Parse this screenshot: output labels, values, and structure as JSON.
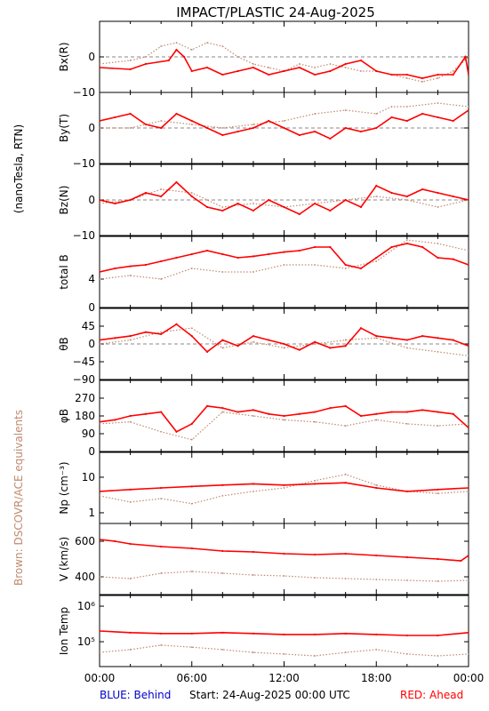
{
  "title": "IMPACT/PLASTIC   24-Aug-2025",
  "left_labels": {
    "units": "(nanoTesla, RTN)",
    "brown_note": "Brown: DSCOVR/ACE equivalents"
  },
  "footer": {
    "blue_label": "BLUE: Behind",
    "start_label": "Start: 24-Aug-2025 00:00 UTC",
    "red_label": "RED: Ahead"
  },
  "colors": {
    "ahead": "#ff0000",
    "dscovr": "#c08a70",
    "behind": "#0000cc",
    "axes": "#000000",
    "zero_line": "#888888"
  },
  "x_tick_labels": [
    "00:00",
    "06:00",
    "12:00",
    "18:00",
    "00:00"
  ],
  "chart_data": [
    {
      "type": "line",
      "id": "bx",
      "ylabel": "Bx(R)",
      "ylim": [
        -10,
        10
      ],
      "yticks": [
        0,
        -10
      ],
      "ytick_labels": [
        "0",
        "−10"
      ],
      "zero_line": true,
      "series": [
        {
          "role": "ahead",
          "x": [
            0,
            2,
            3,
            4.5,
            5,
            5.5,
            6,
            7,
            8,
            9,
            10,
            11,
            12,
            13,
            14,
            15,
            16,
            17,
            18,
            19,
            20,
            21,
            22,
            23,
            23.8,
            24
          ],
          "y": [
            -3,
            -3.5,
            -2,
            -1,
            2,
            0,
            -4,
            -3,
            -5,
            -4,
            -3,
            -5,
            -4,
            -3,
            -5,
            -4,
            -2,
            -1,
            -4,
            -5,
            -5,
            -6,
            -5,
            -5,
            0,
            -5
          ]
        },
        {
          "role": "dscovr",
          "x": [
            0,
            2,
            3,
            4,
            5,
            6,
            7,
            8,
            9,
            10,
            11,
            12,
            13,
            14,
            15,
            16,
            17,
            18,
            19,
            20,
            21,
            22,
            23,
            24
          ],
          "y": [
            -2,
            -1,
            0,
            3,
            4,
            2,
            4,
            3,
            0,
            -2,
            -3,
            -4,
            -2,
            -3,
            -2,
            -3,
            -4,
            -4,
            -5,
            -6,
            -7,
            -6,
            -4,
            0
          ]
        }
      ]
    },
    {
      "type": "line",
      "id": "by",
      "ylabel": "By(T)",
      "ylim": [
        -10,
        10
      ],
      "yticks": [
        0,
        -10
      ],
      "ytick_labels": [
        "0",
        "−10"
      ],
      "zero_line": true,
      "series": [
        {
          "role": "ahead",
          "x": [
            0,
            1,
            2,
            3,
            4,
            5,
            6,
            7,
            8,
            9,
            10,
            11,
            12,
            13,
            14,
            15,
            16,
            17,
            18,
            19,
            20,
            21,
            22,
            23,
            24
          ],
          "y": [
            2,
            3,
            4,
            1,
            0,
            4,
            2,
            0,
            -2,
            -1,
            0,
            2,
            0,
            -2,
            -1,
            -3,
            0,
            -1,
            0,
            3,
            2,
            4,
            3,
            2,
            5
          ]
        },
        {
          "role": "dscovr",
          "x": [
            0,
            2,
            4,
            6,
            8,
            10,
            12,
            14,
            16,
            18,
            19,
            20,
            22,
            24
          ],
          "y": [
            0,
            0,
            2,
            1,
            0,
            1,
            2,
            4,
            5,
            4,
            6,
            6,
            7,
            6
          ]
        }
      ]
    },
    {
      "type": "line",
      "id": "bz",
      "ylabel": "Bz(N)",
      "ylim": [
        -10,
        10
      ],
      "yticks": [
        0,
        -10
      ],
      "ytick_labels": [
        "0",
        "−10"
      ],
      "zero_line": true,
      "series": [
        {
          "role": "ahead",
          "x": [
            0,
            1,
            2,
            3,
            4,
            5,
            6,
            7,
            8,
            9,
            10,
            11,
            12,
            13,
            14,
            15,
            16,
            17,
            18,
            19,
            20,
            21,
            22,
            23,
            24
          ],
          "y": [
            0,
            -1,
            0,
            2,
            1,
            5,
            1,
            -2,
            -3,
            -1,
            -3,
            0,
            -2,
            -4,
            -1,
            -3,
            0,
            -2,
            4,
            2,
            1,
            3,
            2,
            1,
            0
          ]
        },
        {
          "role": "dscovr",
          "x": [
            0,
            2,
            4,
            6,
            8,
            10,
            12,
            14,
            16,
            18,
            20,
            22,
            24
          ],
          "y": [
            -1,
            0,
            3,
            2,
            -2,
            -1,
            -2,
            -1,
            0,
            1,
            0,
            -2,
            0
          ]
        }
      ]
    },
    {
      "type": "line",
      "id": "btot",
      "ylabel": "total B",
      "ylim": [
        0,
        10
      ],
      "yticks": [
        4,
        0
      ],
      "ytick_labels": [
        "4",
        "0"
      ],
      "zero_line": false,
      "series": [
        {
          "role": "ahead",
          "x": [
            0,
            1,
            2,
            3,
            4,
            5,
            6,
            7,
            8,
            9,
            10,
            11,
            12,
            13,
            14,
            15,
            16,
            17,
            18,
            19,
            20,
            21,
            22,
            23,
            24
          ],
          "y": [
            5,
            5.5,
            5.8,
            6,
            6.5,
            7,
            7.5,
            8,
            7.5,
            7,
            7.2,
            7.5,
            7.8,
            8,
            8.5,
            8.5,
            6,
            5.5,
            7,
            8.5,
            9,
            8.5,
            7,
            6.8,
            6
          ]
        },
        {
          "role": "dscovr",
          "x": [
            0,
            2,
            4,
            6,
            8,
            10,
            12,
            14,
            16,
            18,
            20,
            22,
            24
          ],
          "y": [
            4,
            4.5,
            4,
            5.5,
            5,
            5,
            6,
            6,
            5.5,
            6.5,
            9.5,
            9,
            8
          ]
        }
      ]
    },
    {
      "type": "line",
      "id": "theta",
      "ylabel": "θB",
      "ylim": [
        -90,
        90
      ],
      "yticks": [
        45,
        0,
        -45,
        -90
      ],
      "ytick_labels": [
        "45",
        "0",
        "−45",
        "−90"
      ],
      "zero_line": true,
      "series": [
        {
          "role": "ahead",
          "x": [
            0,
            1,
            2,
            3,
            4,
            5,
            6,
            7,
            8,
            9,
            10,
            11,
            12,
            13,
            14,
            15,
            16,
            17,
            18,
            19,
            20,
            21,
            22,
            23,
            24
          ],
          "y": [
            10,
            15,
            20,
            30,
            25,
            50,
            20,
            -20,
            10,
            -5,
            20,
            10,
            0,
            -15,
            5,
            -10,
            -5,
            40,
            20,
            15,
            10,
            20,
            15,
            10,
            -5
          ]
        },
        {
          "role": "dscovr",
          "x": [
            0,
            2,
            4,
            6,
            8,
            10,
            12,
            14,
            16,
            18,
            20,
            22,
            24
          ],
          "y": [
            0,
            10,
            30,
            40,
            -10,
            5,
            -10,
            0,
            10,
            15,
            -10,
            -20,
            -30
          ]
        }
      ]
    },
    {
      "type": "line",
      "id": "phi",
      "ylabel": "φB",
      "ylim": [
        0,
        360
      ],
      "yticks": [
        270,
        180,
        90,
        0
      ],
      "ytick_labels": [
        "270",
        "180",
        "90",
        "0"
      ],
      "zero_line": false,
      "series": [
        {
          "role": "ahead",
          "x": [
            0,
            1,
            2,
            3,
            4,
            5,
            6,
            7,
            8,
            9,
            10,
            11,
            12,
            13,
            14,
            15,
            16,
            17,
            18,
            19,
            20,
            21,
            22,
            23,
            24
          ],
          "y": [
            150,
            160,
            180,
            190,
            200,
            100,
            140,
            230,
            220,
            200,
            210,
            190,
            180,
            190,
            200,
            220,
            230,
            180,
            190,
            200,
            200,
            210,
            200,
            190,
            120
          ]
        },
        {
          "role": "dscovr",
          "x": [
            0,
            2,
            4,
            6,
            8,
            10,
            12,
            14,
            16,
            18,
            20,
            22,
            24
          ],
          "y": [
            140,
            150,
            100,
            60,
            200,
            180,
            160,
            150,
            130,
            160,
            140,
            130,
            140
          ]
        }
      ]
    },
    {
      "type": "line",
      "id": "np",
      "ylabel": "Np (cm⁻³)",
      "ylim": [
        0.5,
        50
      ],
      "log": true,
      "yticks": [
        10,
        1
      ],
      "ytick_labels": [
        "10",
        "1"
      ],
      "zero_line": false,
      "series": [
        {
          "role": "ahead",
          "x": [
            0,
            2,
            4,
            6,
            8,
            10,
            12,
            14,
            16,
            18,
            20,
            22,
            24
          ],
          "y": [
            4,
            4.5,
            5,
            5.5,
            6,
            6.5,
            6,
            6.5,
            7,
            5,
            4,
            4.5,
            5
          ]
        },
        {
          "role": "dscovr",
          "x": [
            0,
            2,
            4,
            6,
            8,
            10,
            12,
            14,
            16,
            18,
            20,
            22,
            24
          ],
          "y": [
            3,
            2,
            2.5,
            1.8,
            3,
            4,
            5,
            8,
            12,
            6,
            4,
            3.5,
            4
          ]
        }
      ]
    },
    {
      "type": "line",
      "id": "v",
      "ylabel": "V (km/s)",
      "ylim": [
        300,
        700
      ],
      "yticks": [
        600,
        400
      ],
      "ytick_labels": [
        "600",
        "400"
      ],
      "zero_line": false,
      "series": [
        {
          "role": "ahead",
          "x": [
            0,
            1,
            2,
            4,
            6,
            8,
            10,
            12,
            14,
            16,
            18,
            20,
            22,
            23.5,
            24
          ],
          "y": [
            610,
            600,
            585,
            570,
            560,
            545,
            540,
            530,
            525,
            530,
            520,
            510,
            500,
            490,
            520
          ]
        },
        {
          "role": "dscovr",
          "x": [
            0,
            2,
            4,
            6,
            8,
            10,
            12,
            14,
            16,
            18,
            20,
            22,
            24
          ],
          "y": [
            400,
            390,
            420,
            430,
            420,
            410,
            405,
            395,
            390,
            385,
            380,
            375,
            380
          ]
        }
      ]
    },
    {
      "type": "line",
      "id": "temp",
      "ylabel": "Ion Temp",
      "ylim": [
        20000,
        2000000
      ],
      "log": true,
      "yticks": [
        1000000,
        100000
      ],
      "ytick_labels": [
        "10⁶",
        "10⁵"
      ],
      "zero_line": false,
      "series": [
        {
          "role": "ahead",
          "x": [
            0,
            2,
            4,
            6,
            8,
            10,
            12,
            14,
            16,
            18,
            20,
            22,
            24
          ],
          "y": [
            200000,
            180000,
            170000,
            170000,
            180000,
            170000,
            160000,
            160000,
            170000,
            160000,
            150000,
            150000,
            180000
          ]
        },
        {
          "role": "dscovr",
          "x": [
            0,
            2,
            4,
            6,
            8,
            10,
            12,
            14,
            16,
            18,
            20,
            22,
            24
          ],
          "y": [
            50000,
            60000,
            80000,
            70000,
            60000,
            50000,
            45000,
            40000,
            50000,
            60000,
            45000,
            40000,
            45000
          ]
        }
      ]
    }
  ]
}
